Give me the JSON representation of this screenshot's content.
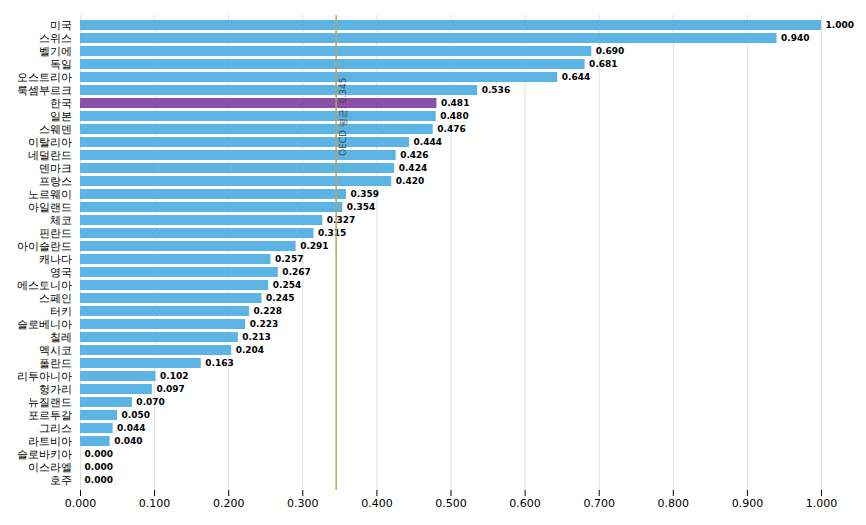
{
  "chart_data": {
    "type": "bar",
    "orientation": "horizontal",
    "categories": [
      "미국",
      "스위스",
      "벨기에",
      "독일",
      "오스트리아",
      "룩셈부르크",
      "한국",
      "일본",
      "스웨덴",
      "이탈리아",
      "네덜란드",
      "덴마크",
      "프랑스",
      "노르웨이",
      "아일랜드",
      "체코",
      "핀란드",
      "아이슬란드",
      "캐나다",
      "영국",
      "에스토니아",
      "스페인",
      "터키",
      "슬로베니아",
      "칠레",
      "멕시코",
      "폴란드",
      "리투아니아",
      "헝가리",
      "뉴질랜드",
      "포르투갈",
      "그리스",
      "라트비아",
      "슬로바키아",
      "이스라엘",
      "호주"
    ],
    "values": [
      1.0,
      0.94,
      0.69,
      0.681,
      0.644,
      0.536,
      0.481,
      0.48,
      0.476,
      0.444,
      0.426,
      0.424,
      0.42,
      0.359,
      0.354,
      0.327,
      0.315,
      0.291,
      0.257,
      0.267,
      0.254,
      0.245,
      0.228,
      0.223,
      0.213,
      0.204,
      0.163,
      0.102,
      0.097,
      0.07,
      0.05,
      0.044,
      0.04,
      0.0,
      0.0,
      0.0
    ],
    "value_labels": [
      "1.000",
      "0.940",
      "0.690",
      "0.681",
      "0.644",
      "0.536",
      "0.481",
      "0.480",
      "0.476",
      "0.444",
      "0.426",
      "0.424",
      "0.420",
      "0.359",
      "0.354",
      "0.327",
      "0.315",
      "0.291",
      "0.257",
      "0.267",
      "0.254",
      "0.245",
      "0.228",
      "0.223",
      "0.213",
      "0.204",
      "0.163",
      "0.102",
      "0.097",
      "0.070",
      "0.050",
      "0.044",
      "0.040",
      "0.000",
      "0.000",
      "0.000"
    ],
    "data_labels": true,
    "colors": [
      "#5BB4E4",
      "#5BB4E4",
      "#5BB4E4",
      "#5BB4E4",
      "#5BB4E4",
      "#5BB4E4",
      "#8B4FA8",
      "#5BB4E4",
      "#5BB4E4",
      "#5BB4E4",
      "#5BB4E4",
      "#5BB4E4",
      "#5BB4E4",
      "#5BB4E4",
      "#5BB4E4",
      "#5BB4E4",
      "#5BB4E4",
      "#5BB4E4",
      "#5BB4E4",
      "#5BB4E4",
      "#5BB4E4",
      "#5BB4E4",
      "#5BB4E4",
      "#5BB4E4",
      "#5BB4E4",
      "#5BB4E4",
      "#5BB4E4",
      "#5BB4E4",
      "#5BB4E4",
      "#5BB4E4",
      "#5BB4E4",
      "#5BB4E4",
      "#5BB4E4",
      "#5BB4E4",
      "#5BB4E4",
      "#5BB4E4"
    ],
    "xlim": [
      0.0,
      1.0
    ],
    "xticks": [
      {
        "value": 0.0,
        "label": "0.000"
      },
      {
        "value": 0.1,
        "label": "0.100"
      },
      {
        "value": 0.2,
        "label": "0.200"
      },
      {
        "value": 0.3,
        "label": "0.300"
      },
      {
        "value": 0.4,
        "label": "0.400"
      },
      {
        "value": 0.5,
        "label": "0.500"
      },
      {
        "value": 0.6,
        "label": "0.600"
      },
      {
        "value": 0.7,
        "label": "0.700"
      },
      {
        "value": 0.8,
        "label": "0.800"
      },
      {
        "value": 0.9,
        "label": "0.900"
      },
      {
        "value": 1.0,
        "label": "1.000"
      }
    ],
    "grid": true,
    "annotations": [
      {
        "type": "vline",
        "x": 0.345,
        "text": "OECD 평균: 0.345",
        "color": "#B8A855",
        "text_color": "#444444"
      }
    ]
  }
}
